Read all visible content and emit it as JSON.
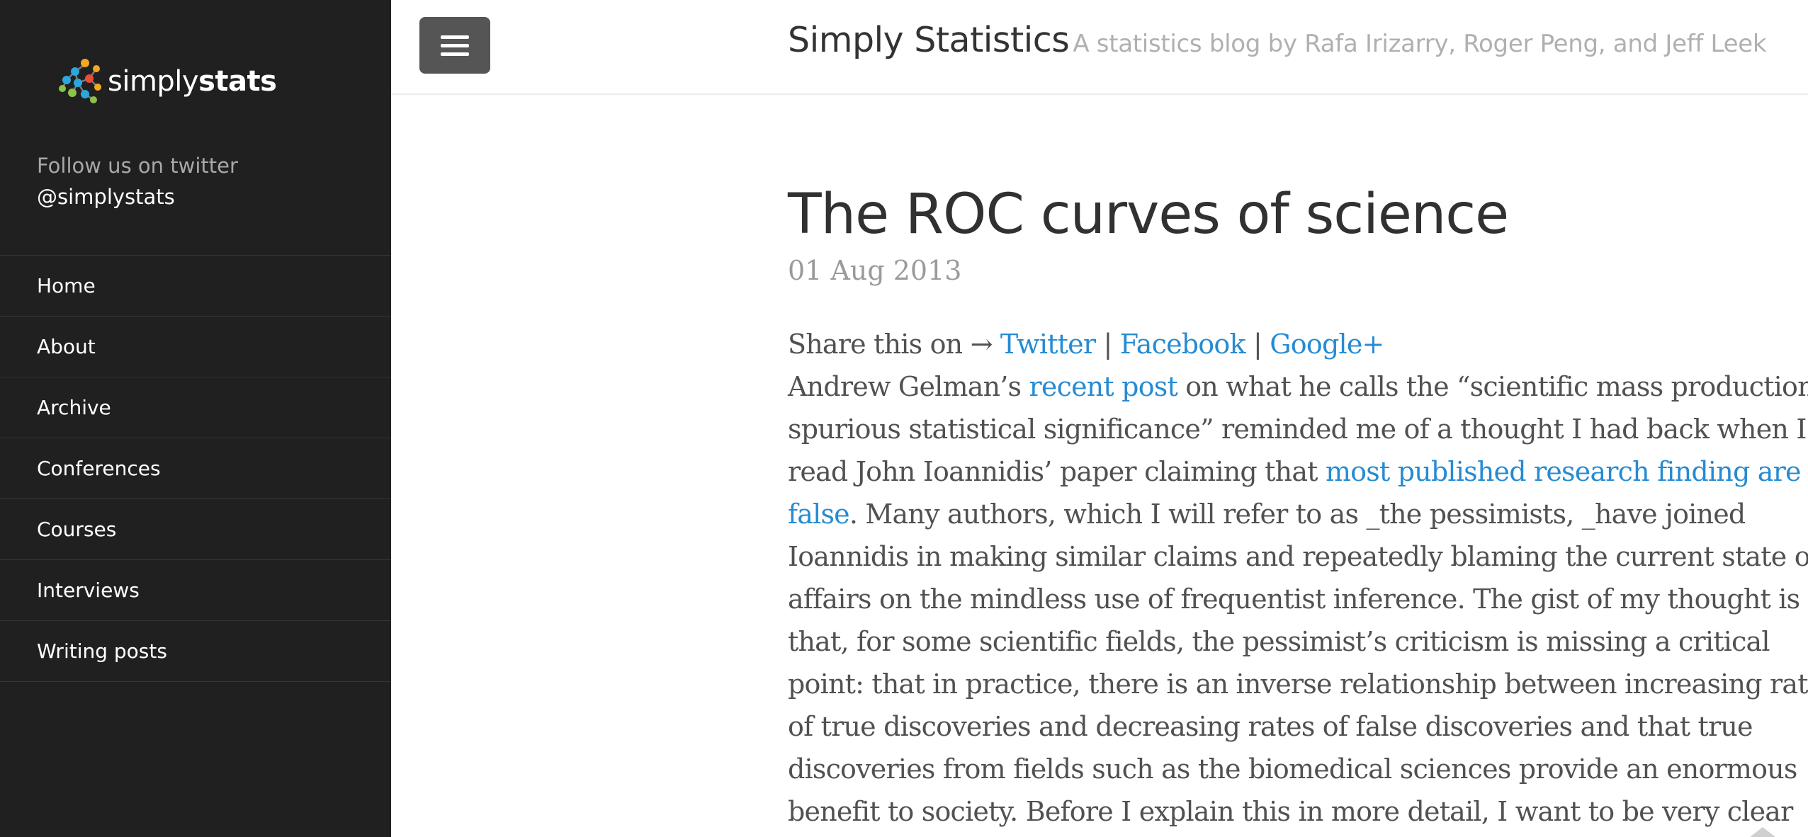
{
  "sidebar": {
    "logo": {
      "simply": "simply",
      "stats": "stats"
    },
    "follow_text": "Follow us on twitter",
    "handle": "@simplystats",
    "nav": [
      "Home",
      "About",
      "Archive",
      "Conferences",
      "Courses",
      "Interviews",
      "Writing posts"
    ]
  },
  "header": {
    "title": "Simply Statistics",
    "tagline": "A statistics blog by Rafa Irizarry, Roger Peng, and Jeff Leek"
  },
  "post": {
    "title": "The ROC curves of science",
    "date": "01 Aug 2013",
    "share_prefix": "Share this on → ",
    "share_sep": " | ",
    "share_links": [
      "Twitter",
      "Facebook",
      "Google+"
    ],
    "l1_a": "Andrew Gelman’s ",
    "l1_link": "recent post",
    "l1_b": " on what he calls the “scientific mass production of",
    "l2": "spurious statistical significance” reminded me of a thought I had back when I",
    "l3_a": "read John Ioannidis’ paper claiming that ",
    "l3_link": "most published research finding are",
    "l4_link": "false",
    "l4_b": ". Many authors, which I will refer to as _the pessimists, _have joined",
    "l5": "Ioannidis in making similar claims and repeatedly blaming the current state of",
    "l6": "affairs on the mindless use of frequentist inference. The gist of my thought is",
    "l7": "that, for some scientific fields, the pessimist’s criticism is missing a critical",
    "l8": "point: that in practice, there is an inverse relationship between increasing rates",
    "l9": "of true discoveries and decreasing rates of false discoveries and that true",
    "l10": "discoveries from fields such as the biomedical sciences provide an enormous",
    "l11": "benefit to society. Before I explain this in more detail, I want to be very clear"
  },
  "colors": {
    "sidebar_bg": "#202020",
    "link": "#268bd2",
    "text": "#515151"
  }
}
